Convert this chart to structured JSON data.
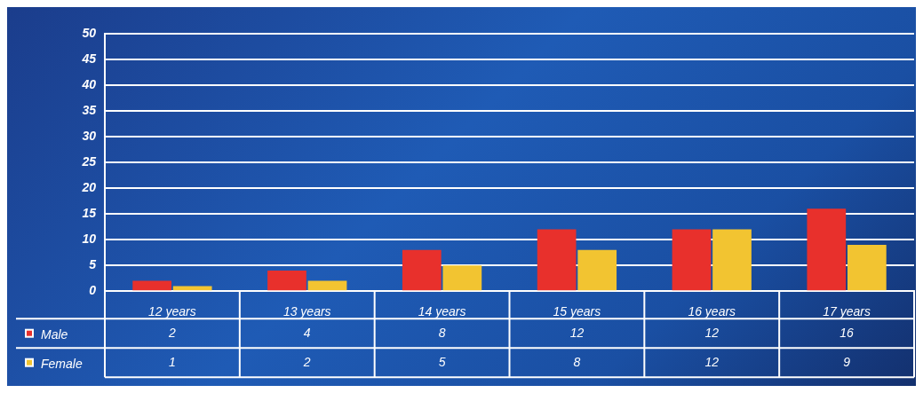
{
  "chart_data": {
    "type": "bar",
    "categories": [
      "12 years",
      "13 years",
      "14 years",
      "15 years",
      "16 years",
      "17 years"
    ],
    "series": [
      {
        "name": "Male",
        "color": "#e8302c",
        "values": [
          2,
          4,
          8,
          12,
          12,
          16
        ]
      },
      {
        "name": "Female",
        "color": "#f2c431",
        "values": [
          1,
          2,
          5,
          8,
          12,
          9
        ]
      }
    ],
    "ylim": [
      0,
      50
    ],
    "yticks": [
      0,
      5,
      10,
      15,
      20,
      25,
      30,
      35,
      40,
      45,
      50
    ],
    "grid": "y",
    "legend": "bottom",
    "data_labels": true
  }
}
